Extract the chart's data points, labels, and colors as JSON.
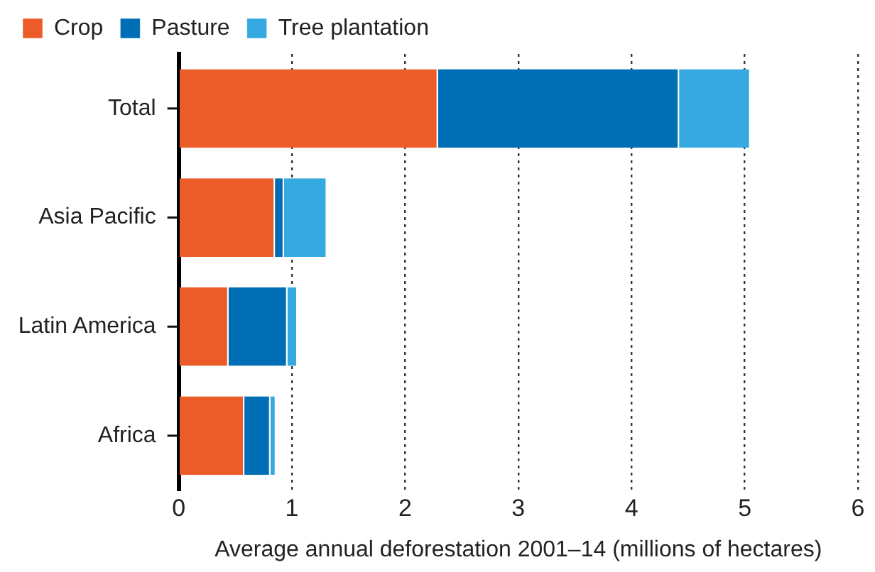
{
  "chart_data": {
    "type": "bar",
    "orientation": "horizontal",
    "stacked": true,
    "categories": [
      "Total",
      "Asia Pacific",
      "Latin America",
      "Africa"
    ],
    "series": [
      {
        "name": "Crop",
        "color": "#eb5c29",
        "values": [
          2.29,
          0.85,
          0.44,
          0.58
        ]
      },
      {
        "name": "Pasture",
        "color": "#006eb5",
        "values": [
          2.13,
          0.08,
          0.52,
          0.23
        ]
      },
      {
        "name": "Tree plantation",
        "color": "#36a9e0",
        "values": [
          0.63,
          0.38,
          0.09,
          0.05
        ]
      }
    ],
    "xlabel": "Average annual deforestation 2001–14 (millions of hectares)",
    "xlim": [
      0,
      6
    ],
    "xticks": [
      0,
      1,
      2,
      3,
      4,
      5,
      6
    ],
    "grid": "x",
    "legend": "top left"
  }
}
